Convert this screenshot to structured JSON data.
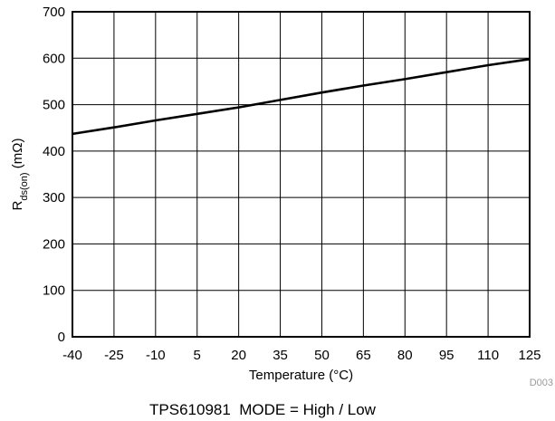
{
  "chart_data": {
    "type": "line",
    "xlabel": "Temperature (°C)",
    "ylabel_main": "R",
    "ylabel_sub": "ds(on)",
    "ylabel_unit": " (mΩ)",
    "xlim": [
      -40,
      125
    ],
    "ylim": [
      0,
      700
    ],
    "xticks": [
      -40,
      -25,
      -10,
      5,
      20,
      35,
      50,
      65,
      80,
      95,
      110,
      125
    ],
    "yticks": [
      0,
      100,
      200,
      300,
      400,
      500,
      600,
      700
    ],
    "grid": true,
    "series": [
      {
        "x": [
          -40,
          -25,
          -10,
          5,
          20,
          35,
          50,
          65,
          80,
          95,
          110,
          125
        ],
        "y": [
          437,
          451,
          466,
          480,
          494,
          510,
          526,
          541,
          555,
          570,
          585,
          598
        ]
      }
    ],
    "figure_id": "D003",
    "caption": "TPS610981  MODE = High / Low"
  }
}
